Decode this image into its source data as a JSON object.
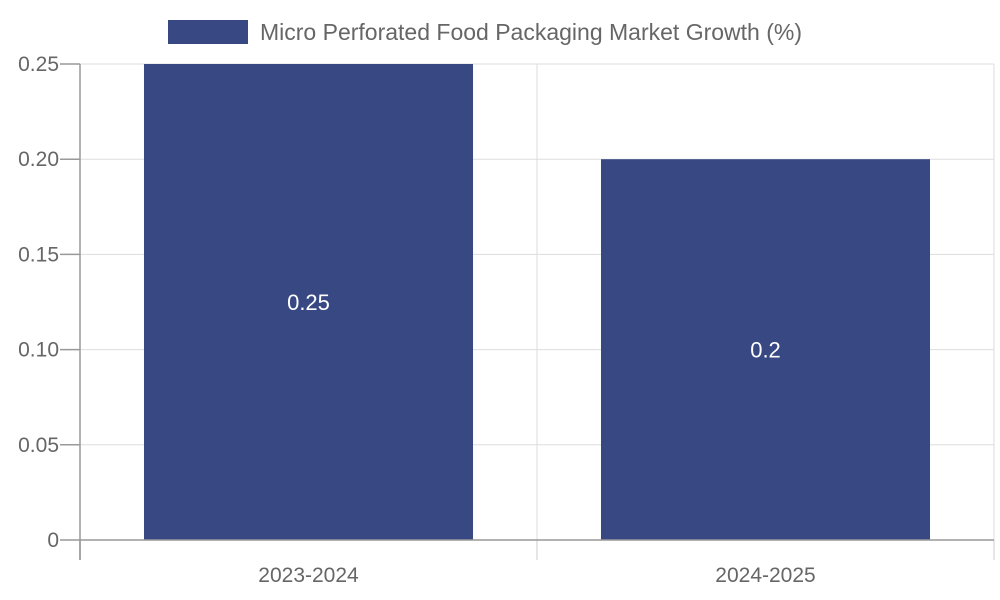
{
  "chart_data": {
    "type": "bar",
    "categories": [
      "2023-2024",
      "2024-2025"
    ],
    "series": [
      {
        "name": "Micro Perforated Food Packaging Market Growth (%)",
        "values": [
          0.25,
          0.2
        ],
        "color": "#384883"
      }
    ],
    "data_labels": [
      "0.25",
      "0.2"
    ],
    "y_ticks": [
      "0",
      "0.05",
      "0.10",
      "0.15",
      "0.20",
      "0.25"
    ],
    "ylim": [
      0,
      0.25
    ],
    "grid": true,
    "legend_position": "top",
    "colors": {
      "axis": "#999999",
      "grid": "#dddddd",
      "text": "#666666",
      "label": "#ffffff"
    }
  }
}
